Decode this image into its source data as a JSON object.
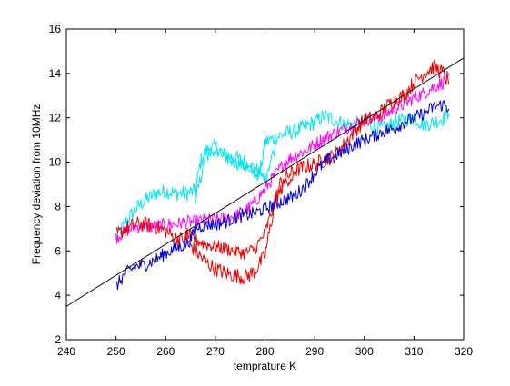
{
  "chart_data": {
    "type": "line",
    "title": "",
    "xlabel": "temprature K",
    "ylabel": "Frequency deviation from 10MHz",
    "xlim": [
      240,
      320
    ],
    "ylim": [
      2,
      16
    ],
    "xticks": [
      240,
      250,
      260,
      270,
      280,
      290,
      300,
      310,
      320
    ],
    "yticks": [
      2,
      4,
      6,
      8,
      10,
      12,
      14,
      16
    ],
    "grid": false,
    "legend": "none",
    "colors": {
      "cyan": "#00e5ee",
      "magenta": "#ff00ff",
      "red": "#ee0000",
      "blue": "#0000dd",
      "fit": "#000000",
      "axes": "#000000"
    },
    "series": [
      {
        "color": "#00e5ee",
        "noise": 0.35,
        "x": [
          250,
          252,
          254,
          256,
          258,
          260,
          262,
          264,
          266,
          267,
          268,
          270,
          272,
          274,
          276,
          278,
          279,
          280,
          282,
          284,
          286,
          288,
          290,
          292,
          294,
          296,
          298,
          300,
          302,
          304,
          306,
          308,
          310,
          312,
          314,
          316,
          317
        ],
        "y": [
          6.6,
          7.3,
          7.9,
          8.3,
          8.6,
          8.7,
          8.6,
          8.6,
          8.7,
          10.0,
          10.5,
          10.7,
          10.3,
          10.2,
          10.0,
          9.7,
          9.5,
          10.9,
          11.1,
          11.3,
          11.4,
          11.6,
          11.8,
          12.1,
          11.9,
          11.7,
          11.7,
          11.8,
          11.6,
          11.5,
          11.8,
          11.9,
          12.0,
          11.7,
          11.8,
          12.0,
          12.2
        ]
      },
      {
        "color": "#00e5ee",
        "noise": 0.3,
        "x": [
          266,
          267,
          268,
          270,
          272,
          274,
          276,
          278,
          280,
          282
        ],
        "y": [
          8.4,
          9.2,
          10.3,
          10.5,
          10.2,
          10.0,
          9.8,
          9.5,
          9.3,
          10.7
        ]
      },
      {
        "color": "#ff00ff",
        "noise": 0.3,
        "x": [
          250,
          252,
          254,
          256,
          258,
          260,
          262,
          264,
          266,
          268,
          270,
          272,
          274,
          276,
          278,
          280,
          282,
          284,
          286,
          288,
          290,
          292,
          294,
          296,
          298,
          300,
          302,
          304,
          306,
          308,
          310,
          312,
          314,
          316,
          317
        ],
        "y": [
          6.6,
          6.9,
          7.1,
          7.1,
          7.1,
          7.2,
          7.2,
          7.3,
          7.3,
          7.4,
          7.4,
          7.5,
          7.6,
          7.8,
          8.2,
          8.8,
          9.4,
          10.0,
          10.3,
          10.5,
          10.8,
          11.1,
          11.3,
          11.5,
          11.7,
          11.9,
          12.0,
          12.1,
          12.4,
          12.6,
          12.9,
          13.1,
          13.4,
          13.6,
          13.9
        ]
      },
      {
        "color": "#ee0000",
        "noise": 0.35,
        "x": [
          250,
          252,
          254,
          256,
          258,
          260,
          262,
          264,
          266,
          268,
          270,
          272,
          274,
          276,
          278,
          280,
          281,
          282,
          283,
          284,
          286,
          288,
          290,
          292,
          294,
          296,
          298,
          300,
          302,
          304,
          306,
          308,
          310,
          312,
          314,
          316,
          317
        ],
        "y": [
          6.7,
          7.0,
          7.2,
          7.2,
          7.1,
          6.9,
          6.6,
          6.5,
          6.0,
          5.5,
          5.2,
          5.0,
          4.9,
          4.8,
          5.1,
          5.8,
          7.0,
          8.2,
          9.0,
          9.3,
          9.6,
          9.8,
          9.9,
          10.1,
          10.3,
          10.8,
          11.4,
          11.9,
          12.0,
          12.4,
          12.8,
          13.0,
          13.6,
          14.0,
          14.3,
          14.0,
          13.5
        ]
      },
      {
        "color": "#ee0000",
        "noise": 0.3,
        "x": [
          264,
          266,
          268,
          270,
          272,
          274,
          276,
          278,
          280,
          282,
          284,
          286
        ],
        "y": [
          6.8,
          6.5,
          6.3,
          6.2,
          6.1,
          6.0,
          5.9,
          6.1,
          6.8,
          8.2,
          9.1,
          9.4
        ]
      },
      {
        "color": "#0000dd",
        "noise": 0.3,
        "x": [
          250,
          252,
          254,
          256,
          258,
          260,
          262,
          264,
          265,
          266,
          268,
          270,
          272,
          274,
          276,
          278,
          280,
          282,
          284,
          286,
          288,
          290,
          292,
          294,
          296,
          298,
          300,
          302,
          304,
          306,
          308,
          310,
          312,
          314,
          316,
          317
        ],
        "y": [
          4.4,
          5.0,
          5.3,
          5.4,
          5.6,
          5.9,
          6.1,
          6.3,
          6.5,
          7.0,
          7.2,
          7.2,
          7.3,
          7.5,
          7.6,
          7.7,
          7.9,
          8.1,
          8.3,
          8.5,
          8.9,
          9.5,
          10.0,
          10.3,
          10.5,
          10.8,
          11.0,
          11.2,
          11.4,
          11.5,
          11.8,
          12.0,
          12.2,
          12.5,
          12.6,
          12.4
        ]
      },
      {
        "color": "#000000",
        "noise": 0,
        "x": [
          240,
          320
        ],
        "y": [
          3.5,
          14.7
        ]
      }
    ]
  }
}
